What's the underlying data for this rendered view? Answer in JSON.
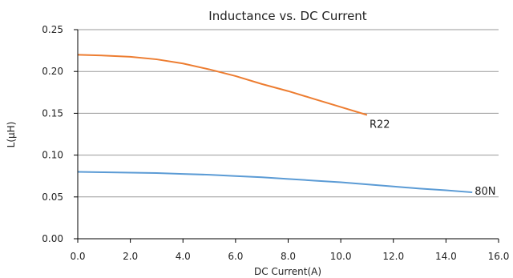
{
  "chart_data": {
    "type": "line",
    "title": "Inductance vs. DC Current",
    "xlabel": "DC Current(A)",
    "ylabel": "L(μH)",
    "xlim": [
      0,
      16
    ],
    "ylim": [
      0,
      0.25
    ],
    "xticks": [
      "0.0",
      "2.0",
      "4.0",
      "6.0",
      "8.0",
      "10.0",
      "12.0",
      "14.0",
      "16.0"
    ],
    "yticks": [
      "0.00",
      "0.05",
      "0.10",
      "0.15",
      "0.20",
      "0.25"
    ],
    "grid": "horizontal",
    "series": [
      {
        "name": "R22",
        "color": "#ed7d31",
        "x": [
          0,
          1,
          2,
          3,
          4,
          5,
          6,
          7,
          8,
          9,
          10,
          11
        ],
        "y": [
          0.22,
          0.219,
          0.2175,
          0.2145,
          0.2095,
          0.2025,
          0.1945,
          0.185,
          0.1765,
          0.167,
          0.1575,
          0.148
        ]
      },
      {
        "name": "80N",
        "color": "#5b9bd5",
        "x": [
          0,
          1,
          2,
          3,
          4,
          5,
          6,
          7,
          8,
          9,
          10,
          11,
          12,
          13,
          14,
          15
        ],
        "y": [
          0.08,
          0.0795,
          0.079,
          0.0785,
          0.0775,
          0.0765,
          0.075,
          0.0735,
          0.0715,
          0.0695,
          0.0675,
          0.065,
          0.0625,
          0.06,
          0.058,
          0.0555
        ]
      }
    ]
  }
}
